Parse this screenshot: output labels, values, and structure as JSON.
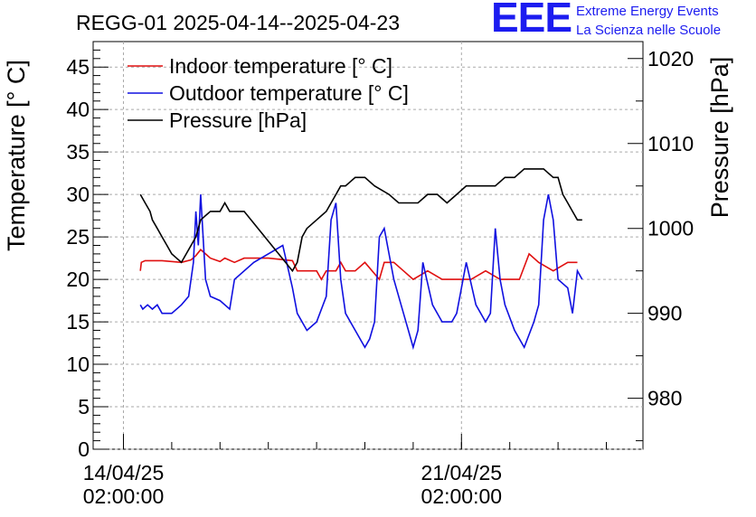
{
  "chart_data": {
    "type": "line",
    "title": "REGG-01 2025-04-14--2025-04-23",
    "ylabel": "Temperature [° C]",
    "y2label": "Pressure [hPa]",
    "ylim": [
      0,
      48
    ],
    "y2lim": [
      974,
      1022
    ],
    "x_ticks": [
      {
        "day": 0,
        "line1": "14/04/25",
        "line2": "02:00:00"
      },
      {
        "day": 7,
        "line1": "21/04/25",
        "line2": "02:00:00"
      }
    ],
    "y_ticks": [
      0,
      5,
      10,
      15,
      20,
      25,
      30,
      35,
      40,
      45
    ],
    "y2_ticks": [
      980,
      990,
      1000,
      1010,
      1020
    ],
    "grid": true,
    "legend_placement": "top-left",
    "series": [
      {
        "name": "Indoor temperature [° C]",
        "axis": "left",
        "color": "#e01010",
        "x": [
          0.35,
          0.37,
          0.45,
          0.8,
          1.2,
          1.4,
          1.5,
          1.6,
          1.7,
          1.8,
          1.9,
          2.0,
          2.1,
          2.3,
          2.5,
          3.0,
          3.5,
          3.6,
          3.65,
          3.7,
          4.0,
          4.1,
          4.2,
          4.4,
          4.5,
          4.6,
          4.8,
          5.0,
          5.3,
          5.4,
          5.6,
          5.8,
          6.0,
          6.3,
          6.6,
          6.9,
          7.2,
          7.5,
          7.8,
          8.2,
          8.4,
          8.6,
          8.9,
          9.2,
          9.4
        ],
        "y": [
          21.0,
          22.0,
          22.2,
          22.2,
          22.0,
          22.3,
          22.8,
          23.5,
          23.0,
          22.5,
          22.3,
          22.1,
          22.5,
          22.0,
          22.5,
          22.5,
          22.2,
          21.0,
          21.0,
          21.0,
          21.0,
          20.0,
          21.0,
          21.0,
          22.0,
          21.0,
          21.0,
          22.0,
          20.0,
          22.0,
          22.0,
          21.0,
          20.0,
          21.0,
          20.0,
          20.0,
          20.0,
          21.0,
          20.0,
          20.0,
          23.0,
          22.0,
          21.0,
          22.0,
          22.0
        ]
      },
      {
        "name": "Outdoor temperature [° C]",
        "axis": "left",
        "color": "#1010e0",
        "x": [
          0.35,
          0.4,
          0.5,
          0.6,
          0.7,
          0.8,
          1.0,
          1.2,
          1.35,
          1.45,
          1.5,
          1.55,
          1.6,
          1.65,
          1.7,
          1.8,
          2.0,
          2.2,
          2.3,
          2.7,
          3.3,
          3.5,
          3.6,
          3.8,
          4.0,
          4.2,
          4.3,
          4.4,
          4.5,
          4.6,
          4.8,
          5.0,
          5.1,
          5.2,
          5.3,
          5.4,
          5.6,
          5.8,
          5.9,
          6.0,
          6.1,
          6.2,
          6.4,
          6.6,
          6.8,
          6.9,
          7.0,
          7.1,
          7.3,
          7.5,
          7.6,
          7.7,
          7.8,
          7.9,
          8.1,
          8.3,
          8.5,
          8.6,
          8.7,
          8.8,
          8.9,
          9.0,
          9.2,
          9.3,
          9.4,
          9.5
        ],
        "y": [
          17,
          16.5,
          17,
          16.5,
          17,
          16,
          16,
          17,
          18,
          22,
          28,
          24,
          30,
          25,
          20,
          18,
          17.5,
          16.5,
          20,
          22,
          24,
          19,
          16,
          14,
          15,
          18,
          27,
          29,
          20,
          16,
          14,
          12,
          13,
          15,
          25,
          26,
          20,
          16,
          14,
          12,
          14,
          22,
          17,
          15,
          15,
          16,
          19,
          22,
          17,
          15,
          16,
          26,
          20,
          17,
          14,
          12,
          15,
          17,
          27,
          30,
          27,
          20,
          19,
          16,
          21,
          20
        ]
      },
      {
        "name": "Pressure [hPa]",
        "axis": "right",
        "color": "#000000",
        "x": [
          0.35,
          0.45,
          0.55,
          0.6,
          0.7,
          0.8,
          0.9,
          1.0,
          1.2,
          1.4,
          1.5,
          1.6,
          1.8,
          2.0,
          2.1,
          2.2,
          2.5,
          3.5,
          3.6,
          3.7,
          3.8,
          4.0,
          4.2,
          4.4,
          4.5,
          4.6,
          4.8,
          5.0,
          5.2,
          5.5,
          5.7,
          5.9,
          6.1,
          6.3,
          6.5,
          6.7,
          6.9,
          7.1,
          7.3,
          7.5,
          7.7,
          7.9,
          8.1,
          8.3,
          8.5,
          8.7,
          8.9,
          9.0,
          9.1,
          9.2,
          9.3,
          9.4,
          9.5
        ],
        "y": [
          1004,
          1003,
          1002,
          1001,
          1000,
          999,
          998,
          997,
          996,
          998,
          999,
          1001,
          1002,
          1002,
          1003,
          1002,
          1002,
          995,
          996,
          999,
          1000,
          1001,
          1002,
          1004,
          1005,
          1005,
          1006,
          1006,
          1005,
          1004,
          1003,
          1003,
          1003,
          1004,
          1004,
          1003,
          1004,
          1005,
          1005,
          1005,
          1005,
          1006,
          1006,
          1007,
          1007,
          1007,
          1006,
          1006,
          1004,
          1003,
          1002,
          1001,
          1001
        ]
      }
    ]
  },
  "logo": {
    "mark": "EEE",
    "line1": "Extreme Energy Events",
    "line2": "La Scienza nelle Scuole"
  }
}
